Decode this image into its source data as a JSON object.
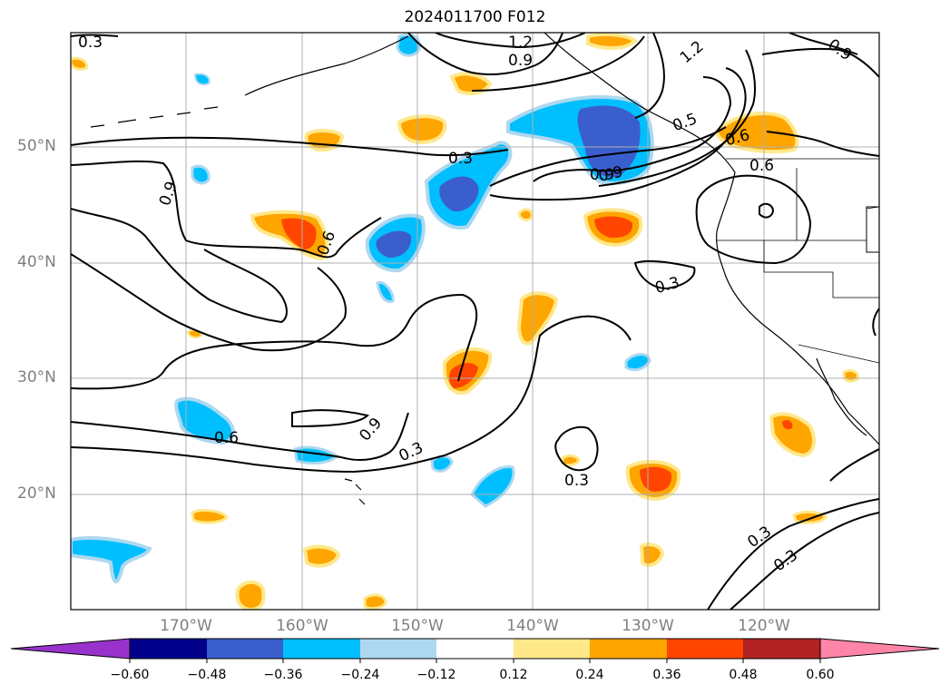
{
  "title": "2024011700 F012",
  "latitude_labels": [
    "50°N",
    "40°N",
    "30°N",
    "20°N"
  ],
  "longitude_labels": [
    "170°W",
    "160°W",
    "150°W",
    "140°W",
    "130°W",
    "120°W"
  ],
  "contour_labels": [
    "0.3",
    "1.2",
    "0.9",
    "1.2",
    "0.9",
    "0.9",
    "0.3",
    "0.5",
    "0.6",
    "0.6",
    "0.9",
    "0.9",
    "0.6",
    "0.3",
    "0.6",
    "0.9",
    "0.3",
    "0.3",
    "0.3",
    "0.3"
  ],
  "colorbar": {
    "ticks": [
      "−0.60",
      "−0.48",
      "−0.36",
      "−0.24",
      "−0.12",
      "0.12",
      "0.24",
      "0.36",
      "0.48",
      "0.60"
    ],
    "colors": [
      "#9932cc",
      "#00008b",
      "#3a5fcd",
      "#00bfff",
      "#add8f0",
      "#ffffff",
      "#ffe88a",
      "#ffa500",
      "#ff4500",
      "#b22222",
      "#ff85a8"
    ]
  }
}
